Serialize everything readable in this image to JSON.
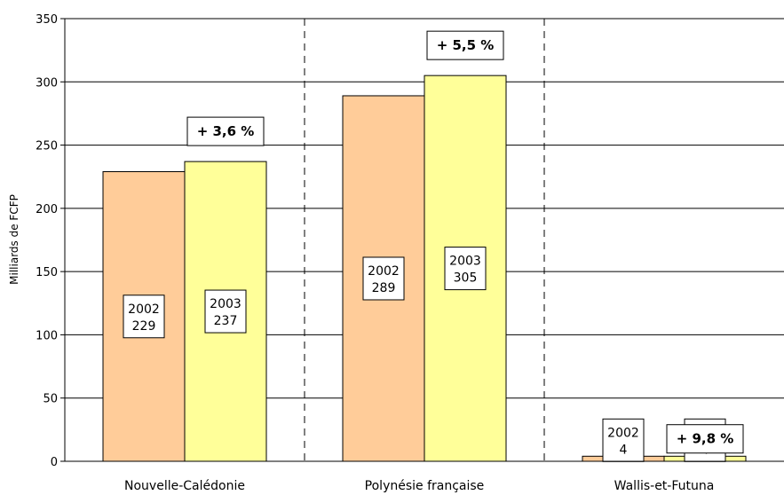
{
  "chart_data": {
    "type": "bar",
    "ylabel": "Milliards de FCFP",
    "ylim": [
      0,
      350
    ],
    "yticks": [
      0,
      50,
      100,
      150,
      200,
      250,
      300,
      350
    ],
    "grid": true,
    "categories": [
      "Nouvelle-Calédonie",
      "Polynésie française",
      "Wallis-et-Futuna"
    ],
    "series": [
      {
        "name": "2002",
        "values": [
          229,
          289,
          4
        ],
        "color": "#FFCC99"
      },
      {
        "name": "2003",
        "values": [
          237,
          305,
          4
        ],
        "color": "#FFFF99"
      }
    ],
    "annotations": [
      "+ 3,6 %",
      "+ 5,5 %",
      "+ 9,8 %"
    ]
  }
}
